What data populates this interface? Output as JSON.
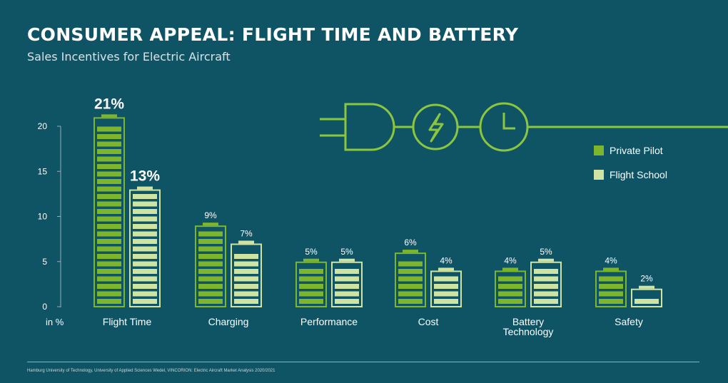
{
  "title": "CONSUMER APPEAL: FLIGHT TIME AND BATTERY",
  "subtitle": "Sales Incentives for Electric Aircraft",
  "source": "Hamburg University of Technology, University of Applied Sciences Wedel, VINCORION: Electric Aircraft Market Analysis 2020/2021",
  "icons": [
    "plug-icon",
    "lightning-icon",
    "clock-icon"
  ],
  "colors": {
    "background": "#0f5465",
    "private_pilot": "#7db52c",
    "flight_school": "#cfe3a3",
    "text": "#ffffff"
  },
  "chart_data": {
    "type": "bar",
    "title": "CONSUMER APPEAL: FLIGHT TIME AND BATTERY",
    "subtitle": "Sales Incentives for Electric Aircraft",
    "ylabel": "in %",
    "ylim": [
      0,
      20
    ],
    "yticks": [
      0,
      5,
      10,
      15,
      20
    ],
    "categories": [
      "Flight Time",
      "Charging",
      "Performance",
      "Cost",
      "Battery Technology",
      "Safety"
    ],
    "series": [
      {
        "name": "Private Pilot",
        "values": [
          21,
          9,
          5,
          6,
          4,
          4
        ],
        "labels": [
          "21%",
          "9%",
          "5%",
          "6%",
          "4%",
          "4%"
        ]
      },
      {
        "name": "Flight School",
        "values": [
          13,
          7,
          5,
          4,
          5,
          2
        ],
        "labels": [
          "13%",
          "7%",
          "5%",
          "4%",
          "5%",
          "2%"
        ]
      }
    ],
    "legend_position": "top-right",
    "grid": false
  }
}
